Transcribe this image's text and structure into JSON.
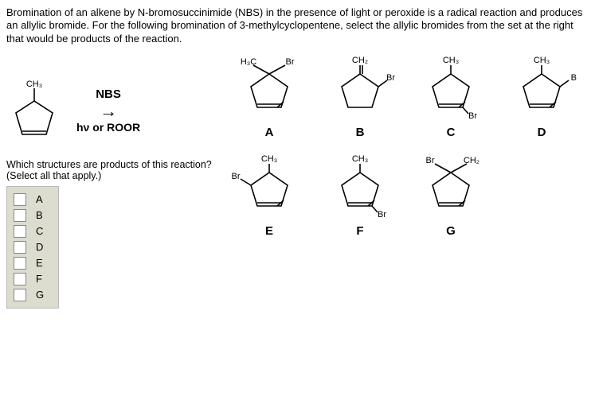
{
  "question": "Bromination of an alkene by N-bromosuccinimide (NBS) in the presence of light or peroxide is a radical reaction and produces an allylic bromide. For the following bromination of 3-methylcyclopentene, select the allylic bromides from the set at the right that would be products of the reaction.",
  "starting_material_sub": "CH₃",
  "reagent_top": "NBS",
  "reagent_bottom": "hν  or  ROOR",
  "sub_question": "Which structures are products of this reaction? (Select all that apply.)",
  "options": [
    "A",
    "B",
    "C",
    "D",
    "E",
    "F",
    "G"
  ],
  "structures_row1": [
    {
      "label": "A",
      "top_left": "H₃C",
      "top_right": "Br"
    },
    {
      "label": "B",
      "top": "CH₂",
      "right": "Br"
    },
    {
      "label": "C",
      "top": "CH₃",
      "bottom": "Br"
    },
    {
      "label": "D",
      "top": "CH₃",
      "right": "B"
    }
  ],
  "structures_row2": [
    {
      "label": "E",
      "top": "CH₃",
      "left": "Br"
    },
    {
      "label": "F",
      "top": "CH₃",
      "bottom": "Br"
    },
    {
      "label": "G",
      "top_left": "Br",
      "top_right": "CH₂"
    }
  ],
  "colors": {
    "text": "#000000",
    "bg": "#ffffff",
    "answer_bg": "#dcdccf",
    "answer_border": "#bbbbbb",
    "checkbox_bg": "#ffffff",
    "checkbox_border": "#888888",
    "bond": "#000000"
  },
  "fonts": {
    "body_size_pt": 10,
    "label_size_pt": 11,
    "reagent_size_pt": 11
  }
}
